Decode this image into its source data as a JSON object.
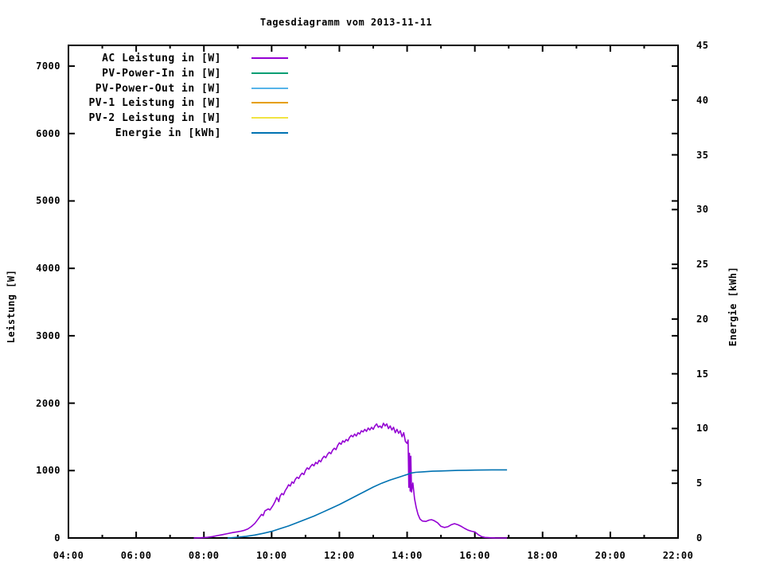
{
  "window": {
    "background": "#ffffff",
    "foreground": "#000000"
  },
  "chart_data": {
    "type": "line",
    "title": "Tagesdiagramm vom 2013-11-11",
    "grid": false,
    "legend_position": "top-left-inside",
    "x_axis": {
      "label": "",
      "min": 4,
      "max": 22,
      "major_ticks": [
        {
          "v": 4,
          "label": "04:00"
        },
        {
          "v": 6,
          "label": "06:00"
        },
        {
          "v": 8,
          "label": "08:00"
        },
        {
          "v": 10,
          "label": "10:00"
        },
        {
          "v": 12,
          "label": "12:00"
        },
        {
          "v": 14,
          "label": "14:00"
        },
        {
          "v": 16,
          "label": "16:00"
        },
        {
          "v": 18,
          "label": "18:00"
        },
        {
          "v": 20,
          "label": "20:00"
        },
        {
          "v": 22,
          "label": "22:00"
        }
      ],
      "minor_ticks": [
        5,
        7,
        9,
        11,
        13,
        15,
        17,
        19,
        21
      ]
    },
    "y_axis": {
      "label": "Leistung [W]",
      "min": 0,
      "max": 7308,
      "ticks": [
        {
          "v": 0,
          "label": "0"
        },
        {
          "v": 1000,
          "label": "1000"
        },
        {
          "v": 2000,
          "label": "2000"
        },
        {
          "v": 3000,
          "label": "3000"
        },
        {
          "v": 4000,
          "label": "4000"
        },
        {
          "v": 5000,
          "label": "5000"
        },
        {
          "v": 6000,
          "label": "6000"
        },
        {
          "v": 7000,
          "label": "7000"
        }
      ]
    },
    "y2_axis": {
      "label": "Energie [kWh]",
      "min": 0,
      "max": 45,
      "ticks": [
        {
          "v": 0,
          "label": "0"
        },
        {
          "v": 5,
          "label": "5"
        },
        {
          "v": 10,
          "label": "10"
        },
        {
          "v": 15,
          "label": "15"
        },
        {
          "v": 20,
          "label": "20"
        },
        {
          "v": 25,
          "label": "25"
        },
        {
          "v": 30,
          "label": "30"
        },
        {
          "v": 35,
          "label": "35"
        },
        {
          "v": 40,
          "label": "40"
        },
        {
          "v": 45,
          "label": "45"
        }
      ]
    },
    "series": [
      {
        "name": "AC Leistung in [W]",
        "color": "#9400d3",
        "axis": "y1",
        "points": [
          [
            7.7,
            0
          ],
          [
            7.9,
            3
          ],
          [
            8.1,
            10
          ],
          [
            8.25,
            20
          ],
          [
            8.4,
            35
          ],
          [
            8.55,
            50
          ],
          [
            8.7,
            65
          ],
          [
            8.85,
            80
          ],
          [
            9.0,
            92
          ],
          [
            9.1,
            102
          ],
          [
            9.2,
            115
          ],
          [
            9.3,
            135
          ],
          [
            9.4,
            170
          ],
          [
            9.5,
            215
          ],
          [
            9.6,
            280
          ],
          [
            9.7,
            350
          ],
          [
            9.75,
            332
          ],
          [
            9.8,
            400
          ],
          [
            9.9,
            432
          ],
          [
            9.95,
            415
          ],
          [
            10.0,
            452
          ],
          [
            10.05,
            492
          ],
          [
            10.1,
            540
          ],
          [
            10.15,
            600
          ],
          [
            10.18,
            575
          ],
          [
            10.21,
            540
          ],
          [
            10.25,
            622
          ],
          [
            10.3,
            660
          ],
          [
            10.35,
            640
          ],
          [
            10.4,
            702
          ],
          [
            10.45,
            742
          ],
          [
            10.5,
            790
          ],
          [
            10.55,
            770
          ],
          [
            10.6,
            832
          ],
          [
            10.65,
            812
          ],
          [
            10.7,
            870
          ],
          [
            10.75,
            902
          ],
          [
            10.8,
            882
          ],
          [
            10.85,
            932
          ],
          [
            10.9,
            962
          ],
          [
            10.95,
            940
          ],
          [
            11.0,
            1002
          ],
          [
            11.05,
            1040
          ],
          [
            11.1,
            1020
          ],
          [
            11.15,
            1062
          ],
          [
            11.2,
            1092
          ],
          [
            11.25,
            1070
          ],
          [
            11.3,
            1122
          ],
          [
            11.35,
            1100
          ],
          [
            11.4,
            1152
          ],
          [
            11.45,
            1130
          ],
          [
            11.5,
            1182
          ],
          [
            11.55,
            1212
          ],
          [
            11.6,
            1190
          ],
          [
            11.65,
            1242
          ],
          [
            11.7,
            1272
          ],
          [
            11.75,
            1250
          ],
          [
            11.8,
            1302
          ],
          [
            11.85,
            1332
          ],
          [
            11.9,
            1310
          ],
          [
            11.95,
            1372
          ],
          [
            12.0,
            1412
          ],
          [
            12.05,
            1390
          ],
          [
            12.1,
            1442
          ],
          [
            12.15,
            1420
          ],
          [
            12.2,
            1462
          ],
          [
            12.25,
            1440
          ],
          [
            12.3,
            1492
          ],
          [
            12.35,
            1522
          ],
          [
            12.4,
            1500
          ],
          [
            12.45,
            1542
          ],
          [
            12.5,
            1512
          ],
          [
            12.55,
            1562
          ],
          [
            12.6,
            1542
          ],
          [
            12.65,
            1592
          ],
          [
            12.7,
            1572
          ],
          [
            12.75,
            1612
          ],
          [
            12.8,
            1582
          ],
          [
            12.85,
            1632
          ],
          [
            12.9,
            1602
          ],
          [
            12.95,
            1642
          ],
          [
            13.0,
            1612
          ],
          [
            13.05,
            1662
          ],
          [
            13.1,
            1692
          ],
          [
            13.15,
            1642
          ],
          [
            13.2,
            1662
          ],
          [
            13.25,
            1632
          ],
          [
            13.3,
            1702
          ],
          [
            13.35,
            1662
          ],
          [
            13.4,
            1692
          ],
          [
            13.45,
            1622
          ],
          [
            13.5,
            1662
          ],
          [
            13.55,
            1602
          ],
          [
            13.6,
            1642
          ],
          [
            13.65,
            1562
          ],
          [
            13.7,
            1612
          ],
          [
            13.75,
            1552
          ],
          [
            13.8,
            1592
          ],
          [
            13.85,
            1502
          ],
          [
            13.9,
            1562
          ],
          [
            13.95,
            1432
          ],
          [
            14.0,
            1402
          ],
          [
            14.03,
            1452
          ],
          [
            14.05,
            752
          ],
          [
            14.07,
            1256
          ],
          [
            14.09,
            696
          ],
          [
            14.11,
            1212
          ],
          [
            14.13,
            682
          ],
          [
            14.17,
            816
          ],
          [
            14.22,
            582
          ],
          [
            14.27,
            452
          ],
          [
            14.32,
            352
          ],
          [
            14.38,
            282
          ],
          [
            14.45,
            252
          ],
          [
            14.55,
            246
          ],
          [
            14.65,
            266
          ],
          [
            14.72,
            272
          ],
          [
            14.8,
            256
          ],
          [
            14.9,
            226
          ],
          [
            15.0,
            172
          ],
          [
            15.1,
            156
          ],
          [
            15.2,
            166
          ],
          [
            15.3,
            196
          ],
          [
            15.4,
            212
          ],
          [
            15.5,
            196
          ],
          [
            15.6,
            172
          ],
          [
            15.7,
            142
          ],
          [
            15.8,
            116
          ],
          [
            15.9,
            100
          ],
          [
            16.0,
            90
          ],
          [
            16.1,
            50
          ],
          [
            16.2,
            20
          ],
          [
            16.3,
            8
          ],
          [
            16.45,
            3
          ],
          [
            16.6,
            1
          ],
          [
            16.95,
            0
          ]
        ]
      },
      {
        "name": "PV-Power-In in [W]",
        "color": "#009e73",
        "axis": "y1",
        "points": []
      },
      {
        "name": "PV-Power-Out in [W]",
        "color": "#56b4e9",
        "axis": "y1",
        "points": []
      },
      {
        "name": "PV-1 Leistung in [W]",
        "color": "#e69f00",
        "axis": "y1",
        "points": []
      },
      {
        "name": "PV-2 Leistung in [W]",
        "color": "#f0e442",
        "axis": "y1",
        "points": []
      },
      {
        "name": "Energie in [kWh]",
        "color": "#0072b2",
        "axis": "y2",
        "points": [
          [
            8.7,
            0
          ],
          [
            9.0,
            0.07
          ],
          [
            9.25,
            0.15
          ],
          [
            9.5,
            0.27
          ],
          [
            9.75,
            0.42
          ],
          [
            10.0,
            0.6
          ],
          [
            10.25,
            0.85
          ],
          [
            10.5,
            1.1
          ],
          [
            10.75,
            1.4
          ],
          [
            11.0,
            1.7
          ],
          [
            11.25,
            2.0
          ],
          [
            11.5,
            2.35
          ],
          [
            11.75,
            2.7
          ],
          [
            12.0,
            3.05
          ],
          [
            12.25,
            3.45
          ],
          [
            12.5,
            3.85
          ],
          [
            12.75,
            4.25
          ],
          [
            13.0,
            4.65
          ],
          [
            13.25,
            5.0
          ],
          [
            13.5,
            5.3
          ],
          [
            13.75,
            5.55
          ],
          [
            14.0,
            5.8
          ],
          [
            14.1,
            5.92
          ],
          [
            14.25,
            6.0
          ],
          [
            14.5,
            6.05
          ],
          [
            14.75,
            6.1
          ],
          [
            15.0,
            6.12
          ],
          [
            15.25,
            6.15
          ],
          [
            15.5,
            6.17
          ],
          [
            15.75,
            6.19
          ],
          [
            16.0,
            6.2
          ],
          [
            16.25,
            6.21
          ],
          [
            16.5,
            6.22
          ],
          [
            16.95,
            6.22
          ]
        ]
      }
    ]
  }
}
